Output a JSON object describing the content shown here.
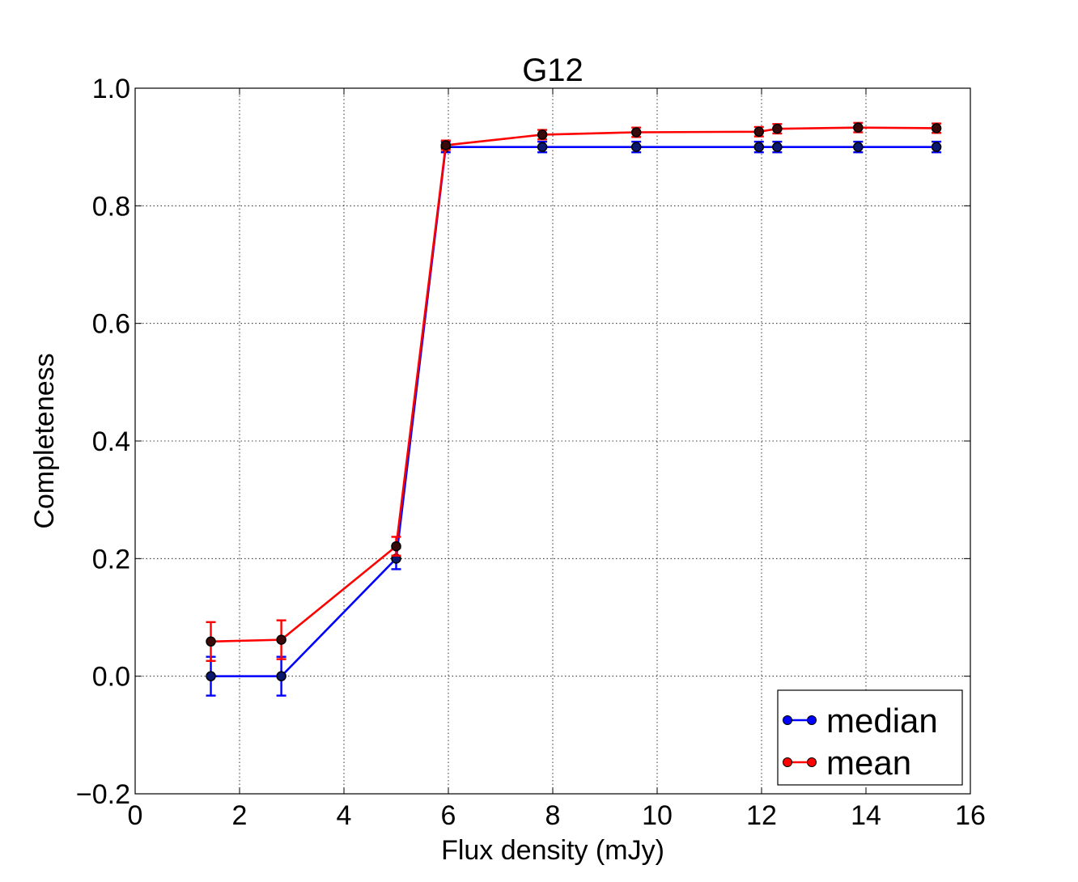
{
  "chart_data": {
    "type": "line",
    "title": "G12",
    "xlabel": "Flux density (mJy)",
    "ylabel": "Completeness",
    "xlim": [
      0,
      16
    ],
    "ylim": [
      -0.2,
      1.0
    ],
    "x_ticks": [
      0,
      2,
      4,
      6,
      8,
      10,
      12,
      14,
      16
    ],
    "x_tick_labels": [
      "0",
      "2",
      "4",
      "6",
      "8",
      "10",
      "12",
      "14",
      "16"
    ],
    "y_ticks": [
      -0.2,
      0.0,
      0.2,
      0.4,
      0.6,
      0.8,
      1.0
    ],
    "y_tick_labels": [
      "−0.2",
      "0.0",
      "0.2",
      "0.4",
      "0.6",
      "0.8",
      "1.0"
    ],
    "grid": true,
    "legend_position": "lower-right",
    "series": [
      {
        "name": "median",
        "color": "#0000ff",
        "marker_fill": "#0b1a70",
        "points": [
          {
            "x": 1.45,
            "y": 0.0,
            "err": 0.033
          },
          {
            "x": 2.8,
            "y": 0.0,
            "err": 0.033
          },
          {
            "x": 5.0,
            "y": 0.2,
            "err": 0.018
          },
          {
            "x": 5.95,
            "y": 0.9,
            "err": 0.009
          },
          {
            "x": 7.8,
            "y": 0.9,
            "err": 0.009
          },
          {
            "x": 9.6,
            "y": 0.9,
            "err": 0.009
          },
          {
            "x": 11.95,
            "y": 0.9,
            "err": 0.009
          },
          {
            "x": 12.3,
            "y": 0.9,
            "err": 0.009
          },
          {
            "x": 13.85,
            "y": 0.9,
            "err": 0.009
          },
          {
            "x": 15.35,
            "y": 0.9,
            "err": 0.009
          }
        ]
      },
      {
        "name": "mean",
        "color": "#ff0000",
        "marker_fill": "#3a0a0a",
        "points": [
          {
            "x": 1.45,
            "y": 0.059,
            "err": 0.033
          },
          {
            "x": 2.8,
            "y": 0.062,
            "err": 0.033
          },
          {
            "x": 5.0,
            "y": 0.221,
            "err": 0.016
          },
          {
            "x": 5.95,
            "y": 0.903,
            "err": 0.008
          },
          {
            "x": 7.8,
            "y": 0.921,
            "err": 0.008
          },
          {
            "x": 9.6,
            "y": 0.925,
            "err": 0.008
          },
          {
            "x": 11.95,
            "y": 0.926,
            "err": 0.008
          },
          {
            "x": 12.3,
            "y": 0.931,
            "err": 0.008
          },
          {
            "x": 13.85,
            "y": 0.933,
            "err": 0.008
          },
          {
            "x": 15.35,
            "y": 0.932,
            "err": 0.008
          }
        ]
      }
    ]
  }
}
